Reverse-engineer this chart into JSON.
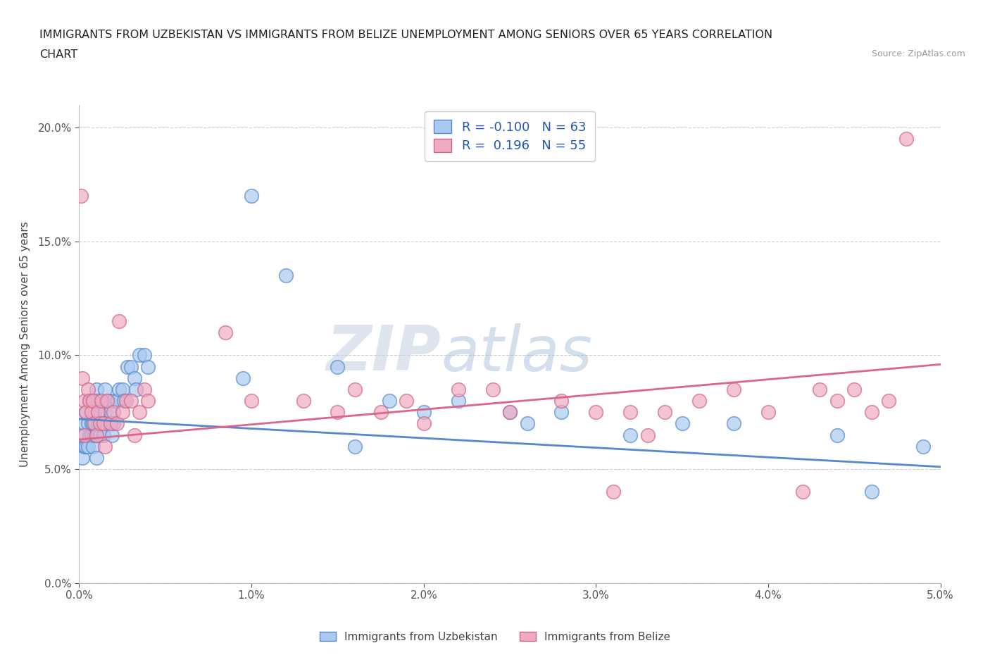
{
  "title_line1": "IMMIGRANTS FROM UZBEKISTAN VS IMMIGRANTS FROM BELIZE UNEMPLOYMENT AMONG SENIORS OVER 65 YEARS CORRELATION",
  "title_line2": "CHART",
  "source": "Source: ZipAtlas.com",
  "ylabel": "Unemployment Among Seniors over 65 years",
  "xlim": [
    0.0,
    0.05
  ],
  "ylim": [
    0.0,
    0.21
  ],
  "x_ticks": [
    0.0,
    0.01,
    0.02,
    0.03,
    0.04,
    0.05
  ],
  "x_tick_labels": [
    "0.0%",
    "1.0%",
    "2.0%",
    "3.0%",
    "4.0%",
    "5.0%"
  ],
  "y_ticks": [
    0.0,
    0.05,
    0.1,
    0.15,
    0.2
  ],
  "y_tick_labels": [
    "0.0%",
    "5.0%",
    "10.0%",
    "15.0%",
    "20.0%"
  ],
  "color_uzbekistan": "#aac9f0",
  "color_belize": "#f0aac4",
  "edge_color_uzbekistan": "#5588cc",
  "edge_color_belize": "#cc6688",
  "line_color_uzbekistan": "#5588cc",
  "line_color_belize": "#dd6688",
  "R_uzbekistan": -0.1,
  "N_uzbekistan": 63,
  "R_belize": 0.196,
  "N_belize": 55,
  "watermark_zip": "ZIP",
  "watermark_atlas": "atlas",
  "legend_label_uzbekistan": "Immigrants from Uzbekistan",
  "legend_label_belize": "Immigrants from Belize",
  "uzbekistan_x": [
    0.0002,
    0.0002,
    0.0003,
    0.0003,
    0.0004,
    0.0004,
    0.0005,
    0.0005,
    0.0006,
    0.0006,
    0.0007,
    0.0007,
    0.0007,
    0.0008,
    0.0008,
    0.0008,
    0.0009,
    0.0009,
    0.001,
    0.001,
    0.001,
    0.0011,
    0.0011,
    0.0012,
    0.0012,
    0.0013,
    0.0014,
    0.0015,
    0.0015,
    0.0016,
    0.0017,
    0.0018,
    0.0019,
    0.002,
    0.002,
    0.0022,
    0.0023,
    0.0025,
    0.0026,
    0.0028,
    0.003,
    0.0032,
    0.0033,
    0.0035,
    0.0038,
    0.004,
    0.0095,
    0.01,
    0.012,
    0.015,
    0.016,
    0.018,
    0.02,
    0.022,
    0.025,
    0.026,
    0.028,
    0.032,
    0.035,
    0.038,
    0.044,
    0.046,
    0.049
  ],
  "uzbekistan_y": [
    0.055,
    0.065,
    0.06,
    0.07,
    0.06,
    0.075,
    0.06,
    0.07,
    0.065,
    0.08,
    0.065,
    0.07,
    0.08,
    0.06,
    0.07,
    0.08,
    0.065,
    0.075,
    0.055,
    0.065,
    0.085,
    0.07,
    0.08,
    0.065,
    0.075,
    0.07,
    0.065,
    0.085,
    0.075,
    0.07,
    0.08,
    0.075,
    0.065,
    0.07,
    0.08,
    0.08,
    0.085,
    0.085,
    0.08,
    0.095,
    0.095,
    0.09,
    0.085,
    0.1,
    0.1,
    0.095,
    0.09,
    0.17,
    0.135,
    0.095,
    0.06,
    0.08,
    0.075,
    0.08,
    0.075,
    0.07,
    0.075,
    0.065,
    0.07,
    0.07,
    0.065,
    0.04,
    0.06
  ],
  "belize_x": [
    0.0001,
    0.0002,
    0.0003,
    0.0003,
    0.0004,
    0.0005,
    0.0006,
    0.0007,
    0.0008,
    0.0009,
    0.001,
    0.0011,
    0.0012,
    0.0013,
    0.0014,
    0.0015,
    0.0016,
    0.0018,
    0.002,
    0.0022,
    0.0023,
    0.0025,
    0.0027,
    0.003,
    0.0032,
    0.0035,
    0.0038,
    0.004,
    0.0085,
    0.01,
    0.013,
    0.015,
    0.016,
    0.0175,
    0.019,
    0.02,
    0.022,
    0.024,
    0.025,
    0.028,
    0.03,
    0.031,
    0.032,
    0.033,
    0.034,
    0.036,
    0.038,
    0.04,
    0.042,
    0.043,
    0.044,
    0.045,
    0.046,
    0.047,
    0.048
  ],
  "belize_y": [
    0.17,
    0.09,
    0.065,
    0.08,
    0.075,
    0.085,
    0.08,
    0.075,
    0.08,
    0.07,
    0.065,
    0.075,
    0.07,
    0.08,
    0.07,
    0.06,
    0.08,
    0.07,
    0.075,
    0.07,
    0.115,
    0.075,
    0.08,
    0.08,
    0.065,
    0.075,
    0.085,
    0.08,
    0.11,
    0.08,
    0.08,
    0.075,
    0.085,
    0.075,
    0.08,
    0.07,
    0.085,
    0.085,
    0.075,
    0.08,
    0.075,
    0.04,
    0.075,
    0.065,
    0.075,
    0.08,
    0.085,
    0.075,
    0.04,
    0.085,
    0.08,
    0.085,
    0.075,
    0.08,
    0.195
  ],
  "trend_uzb_x0": 0.0,
  "trend_uzb_x1": 0.05,
  "trend_uzb_y0": 0.072,
  "trend_uzb_y1": 0.051,
  "trend_bel_x0": 0.0,
  "trend_bel_x1": 0.05,
  "trend_bel_y0": 0.063,
  "trend_bel_y1": 0.096
}
